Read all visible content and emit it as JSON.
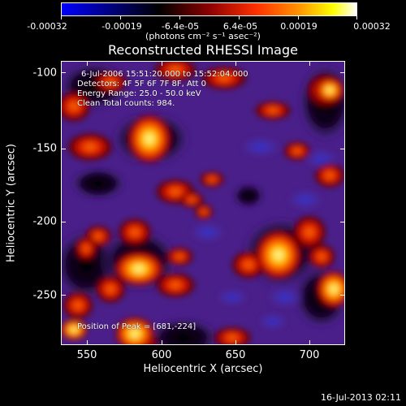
{
  "colorbar": {
    "tick_labels": [
      "-0.00032",
      "-0.00019",
      "-6.4e-05",
      "6.4e-05",
      "0.00019",
      "0.00032"
    ],
    "units": "(photons cm⁻² s⁻¹ asec⁻²)",
    "colors": [
      "#0000ff",
      "#000000",
      "#ff0000",
      "#ffff00",
      "#ffffff"
    ]
  },
  "plot": {
    "title": "Reconstructed RHESSI Image",
    "xlabel": "Heliocentric X (arcsec)",
    "ylabel": "Heliocentric Y (arcsec)",
    "x_ticks": [
      "550",
      "600",
      "650",
      "700"
    ],
    "y_ticks": [
      "-100",
      "-150",
      "-200",
      "-250"
    ],
    "x_range": [
      533,
      723
    ],
    "y_range": [
      -285,
      -90
    ]
  },
  "info": {
    "line1": "6-Jul-2006 15:51:20.000 to 15:52:04.000",
    "line2": "Detectors: 4F 5F 6F 7F 8F, Att 0",
    "line3": "Energy Range: 25.0 - 50.0 keV",
    "line4": "Clean    Total counts: 984.",
    "peak": "Position of Peak = [681,-224]"
  },
  "footer": {
    "timestamp": "16-Jul-2013 02:11"
  }
}
